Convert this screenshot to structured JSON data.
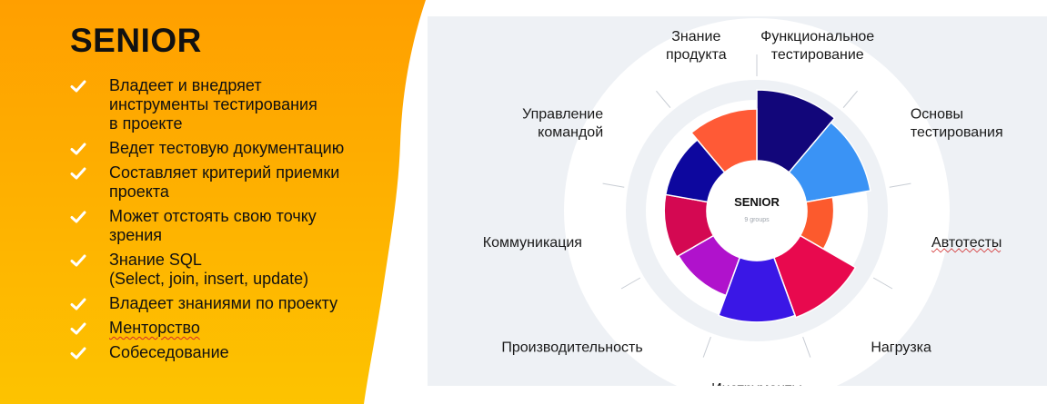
{
  "left_panel": {
    "title": "SENIOR",
    "colors": {
      "yellow": "#fdc300",
      "orange": "#ff9f00",
      "check": "#ffffff"
    },
    "items": [
      {
        "text": "Владеет и внедряет\nинструменты тестирования\nв проекте",
        "lines": 3,
        "icon": "checkmark-icon"
      },
      {
        "text": "Ведет тестовую документацию",
        "lines": 1,
        "icon": "checkmark-icon"
      },
      {
        "text": "Составляет критерий приемки\nпроекта",
        "lines": 2,
        "icon": "checkmark-icon"
      },
      {
        "text": "Может отстоять свою точку\nзрения",
        "lines": 2,
        "icon": "checkmark-icon"
      },
      {
        "text": "Знание SQL\n(Select, join, insert, update)",
        "lines": 2,
        "icon": "checkmark-icon"
      },
      {
        "text": "Владеет знаниями по проекту",
        "lines": 1,
        "icon": "checkmark-icon"
      },
      {
        "text": "Менторство",
        "lines": 1,
        "icon": "checkmark-icon",
        "spellcheck_underline": true
      },
      {
        "text": "Собеседование",
        "lines": 1,
        "icon": "checkmark-icon"
      }
    ]
  },
  "wheel": {
    "center_title": "SENIOR",
    "center_subtitle": "9 groups",
    "colors": {
      "panel_bg": "#eef1f5",
      "outer_ring": "#ffffff",
      "inner_ring": "#dfe3e9",
      "tick": "#c8cdd4"
    },
    "segments": [
      {
        "label": "Функциональное\nтестирование",
        "level": 1.0,
        "color": "#12067a"
      },
      {
        "label": "Основы\nтестирования",
        "level": 0.92,
        "color": "#3a93f5"
      },
      {
        "label": "Автотесты",
        "level": 0.38,
        "color": "#fc5a2d",
        "spellcheck_underline": true
      },
      {
        "label": "Нагрузка",
        "level": 0.9,
        "color": "#e8094e"
      },
      {
        "label": "Инструменты",
        "level": 0.87,
        "color": "#3a17e6"
      },
      {
        "label": "Производительность",
        "level": 0.57,
        "color": "#b012cc"
      },
      {
        "label": "Коммуникация",
        "level": 0.6,
        "color": "#d40852"
      },
      {
        "label": "Управление\nкомандой",
        "level": 0.6,
        "color": "#0d079e"
      },
      {
        "label": "Знание\nпродукта",
        "level": 0.73,
        "color": "#ff5a36"
      }
    ]
  }
}
